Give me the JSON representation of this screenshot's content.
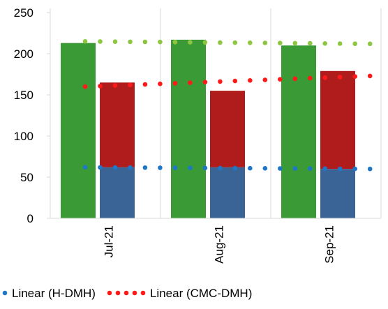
{
  "chart_data": {
    "type": "bar",
    "categories": [
      "Jul-21",
      "Aug-21",
      "Sep-21"
    ],
    "ylim": [
      0,
      250
    ],
    "y_ticks": [
      0,
      50,
      100,
      150,
      200,
      250
    ],
    "grid": {
      "vertical": true,
      "horizontal": false
    },
    "legend_position": "bottom",
    "bar_series": [
      {
        "group": "green",
        "color": "#3a9a35",
        "values": [
          213,
          217,
          210
        ]
      },
      {
        "group": "stack",
        "color": "#3b6496",
        "values": [
          62,
          62,
          60
        ]
      },
      {
        "group": "stack",
        "color": "#b01c1c",
        "values": [
          103,
          93,
          119
        ]
      }
    ],
    "trendlines": [
      {
        "color": "#8dc63f",
        "start": 215,
        "end": 212,
        "legend": ""
      },
      {
        "color": "#ff1a1a",
        "start": 160,
        "end": 173,
        "legend": "Linear (CMC-DMH)"
      },
      {
        "color": "#1f77c8",
        "start": 62,
        "end": 60,
        "legend": "Linear (H-DMH)"
      }
    ],
    "legend": [
      {
        "label": "Linear (H-DMH)",
        "color": "#1f77c8",
        "dots": 1
      },
      {
        "label": "Linear (CMC-DMH)",
        "color": "#ff1a1a",
        "dots": 5
      }
    ]
  }
}
